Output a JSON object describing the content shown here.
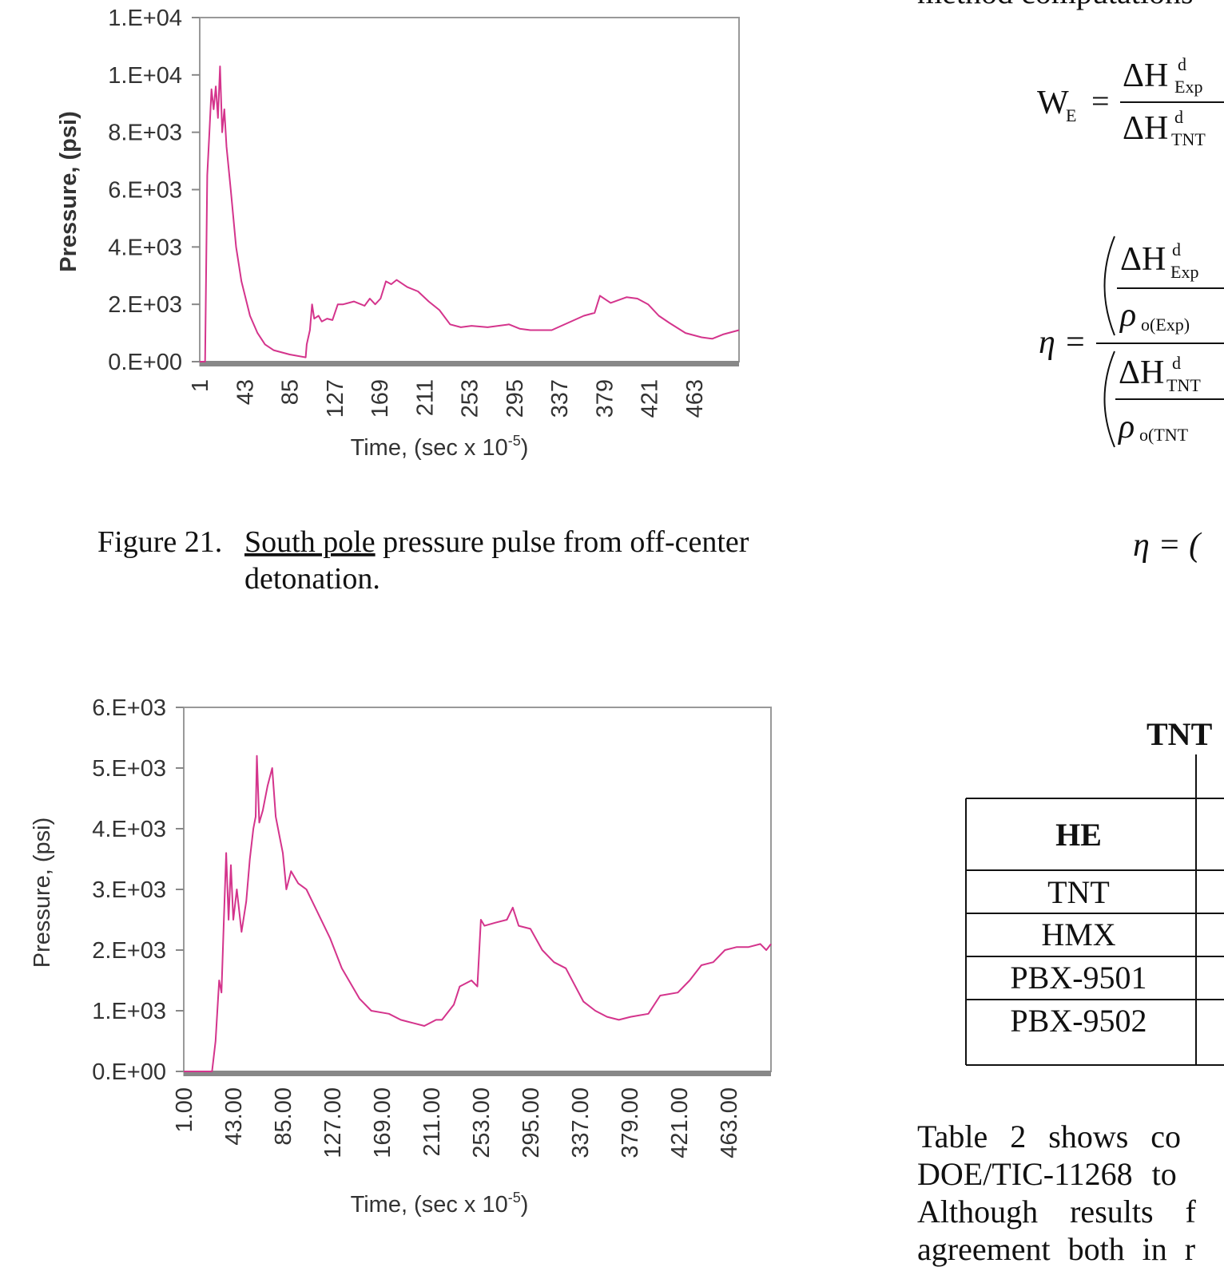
{
  "chart_data": [
    {
      "type": "line",
      "ylabel": "Pressure, (psi)",
      "xlabel": "Time, (sec x 10",
      "xlabel_sup": "-5",
      "xlabel_end": ")",
      "xlim": [
        1,
        505
      ],
      "xticks": [
        1,
        43,
        85,
        127,
        169,
        211,
        253,
        295,
        337,
        379,
        421,
        463
      ],
      "ylim": [
        0,
        12000
      ],
      "yticks": [
        {
          "value": 0,
          "label": "0.E+00"
        },
        {
          "value": 2000,
          "label": "2.E+03"
        },
        {
          "value": 4000,
          "label": "4.E+03"
        },
        {
          "value": 6000,
          "label": "6.E+03"
        },
        {
          "value": 8000,
          "label": "8.E+03"
        },
        {
          "value": 10000,
          "label": "1.E+04"
        },
        {
          "value": 12000,
          "label": "1.E+04"
        }
      ],
      "x": [
        1,
        6,
        8,
        10,
        12,
        14,
        16,
        18,
        20,
        22,
        24,
        26,
        30,
        35,
        40,
        48,
        55,
        62,
        70,
        85,
        100,
        101,
        104,
        106,
        108,
        112,
        115,
        120,
        125,
        130,
        135,
        145,
        155,
        160,
        165,
        170,
        175,
        180,
        185,
        195,
        205,
        215,
        225,
        235,
        245,
        255,
        270,
        290,
        300,
        310,
        330,
        345,
        360,
        370,
        375,
        385,
        400,
        410,
        420,
        430,
        440,
        455,
        470,
        480,
        490,
        505
      ],
      "series": [
        {
          "color": "#d4348c",
          "values": [
            0,
            0,
            6500,
            8000,
            9500,
            8800,
            9600,
            8500,
            10300,
            8000,
            8800,
            7500,
            6000,
            4000,
            2800,
            1600,
            1000,
            600,
            400,
            250,
            150,
            600,
            1100,
            2000,
            1500,
            1600,
            1400,
            1500,
            1450,
            2000,
            2000,
            2100,
            1950,
            2200,
            2000,
            2200,
            2800,
            2700,
            2850,
            2600,
            2450,
            2100,
            1800,
            1300,
            1200,
            1250,
            1200,
            1300,
            1150,
            1100,
            1100,
            1350,
            1600,
            1700,
            2300,
            2050,
            2250,
            2200,
            2000,
            1600,
            1350,
            1000,
            850,
            800,
            950,
            1100
          ]
        }
      ]
    },
    {
      "type": "line",
      "ylabel": "Pressure, (psi)",
      "xlabel": "Time, (sec x 10",
      "xlabel_sup": "-5",
      "xlabel_end": ")",
      "xlim": [
        1,
        499
      ],
      "xticks": [
        {
          "value": 1,
          "label": "1.00"
        },
        {
          "value": 43,
          "label": "43.00"
        },
        {
          "value": 85,
          "label": "85.00"
        },
        {
          "value": 127,
          "label": "127.00"
        },
        {
          "value": 169,
          "label": "169.00"
        },
        {
          "value": 211,
          "label": "211.00"
        },
        {
          "value": 253,
          "label": "253.00"
        },
        {
          "value": 295,
          "label": "295.00"
        },
        {
          "value": 337,
          "label": "337.00"
        },
        {
          "value": 379,
          "label": "379.00"
        },
        {
          "value": 421,
          "label": "421.00"
        },
        {
          "value": 463,
          "label": "463.00"
        }
      ],
      "ylim": [
        0,
        6000
      ],
      "yticks": [
        {
          "value": 0,
          "label": "0.E+00"
        },
        {
          "value": 1000,
          "label": "1.E+03"
        },
        {
          "value": 2000,
          "label": "2.E+03"
        },
        {
          "value": 3000,
          "label": "3.E+03"
        },
        {
          "value": 4000,
          "label": "4.E+03"
        },
        {
          "value": 5000,
          "label": "5.E+03"
        },
        {
          "value": 6000,
          "label": "6.E+03"
        }
      ],
      "x": [
        1,
        25,
        28,
        31,
        33,
        35,
        37,
        39,
        41,
        43,
        46,
        50,
        54,
        57,
        60,
        62,
        63,
        65,
        68,
        72,
        76,
        79,
        82,
        85,
        88,
        92,
        98,
        105,
        110,
        115,
        125,
        135,
        150,
        160,
        175,
        185,
        195,
        205,
        215,
        220,
        230,
        235,
        245,
        250,
        253,
        256,
        265,
        275,
        280,
        285,
        295,
        305,
        315,
        325,
        340,
        350,
        360,
        370,
        380,
        395,
        405,
        420,
        430,
        440,
        450,
        460,
        470,
        480,
        490,
        495,
        499
      ],
      "series": [
        {
          "color": "#d4348c",
          "values": [
            0,
            0,
            500,
            1500,
            1300,
            2500,
            3600,
            2500,
            3400,
            2500,
            3000,
            2300,
            2800,
            3500,
            4000,
            4200,
            5200,
            4100,
            4300,
            4700,
            5000,
            4200,
            3900,
            3600,
            3000,
            3300,
            3100,
            3000,
            2800,
            2600,
            2200,
            1700,
            1200,
            1000,
            950,
            850,
            800,
            750,
            850,
            850,
            1100,
            1400,
            1500,
            1400,
            2500,
            2400,
            2450,
            2500,
            2700,
            2400,
            2350,
            2000,
            1800,
            1700,
            1150,
            1000,
            900,
            850,
            900,
            950,
            1250,
            1300,
            1500,
            1750,
            1800,
            2000,
            2050,
            2050,
            2100,
            2000,
            2100
          ]
        }
      ]
    }
  ],
  "caption": {
    "label": "Figure 21.",
    "underlined": "South pole",
    "text": "pressure pulse from off-center",
    "text2": "detonation."
  },
  "top_text": "method computations",
  "equation_1": {
    "lhs": "W",
    "lhs_sub": "E",
    "eq": "=",
    "num": "ΔH",
    "num_sup": "d",
    "num_sub": "Exp",
    "den": "ΔH",
    "den_sup": "d",
    "den_sub": "TNT"
  },
  "equation_2": {
    "lhs": "η =",
    "num": "ΔH",
    "num_sup": "d",
    "num_sub": "Exp",
    "num_rho": "ρ",
    "num_rho_sub": "o(Exp)",
    "den": "ΔH",
    "den_sup": "d",
    "den_sub": "TNT",
    "den_rho": "ρ",
    "den_rho_sub": "o(TNT"
  },
  "equation_3": "η = (",
  "table": {
    "title": "TNT",
    "header": [
      "HE"
    ],
    "rows": [
      [
        "TNT"
      ],
      [
        "HMX"
      ],
      [
        "PBX-9501"
      ],
      [
        "PBX-9502"
      ]
    ]
  },
  "paragraph": [
    "Table 2 shows co",
    "DOE/TIC-11268 to",
    "Although results f",
    "agreement both in r"
  ]
}
